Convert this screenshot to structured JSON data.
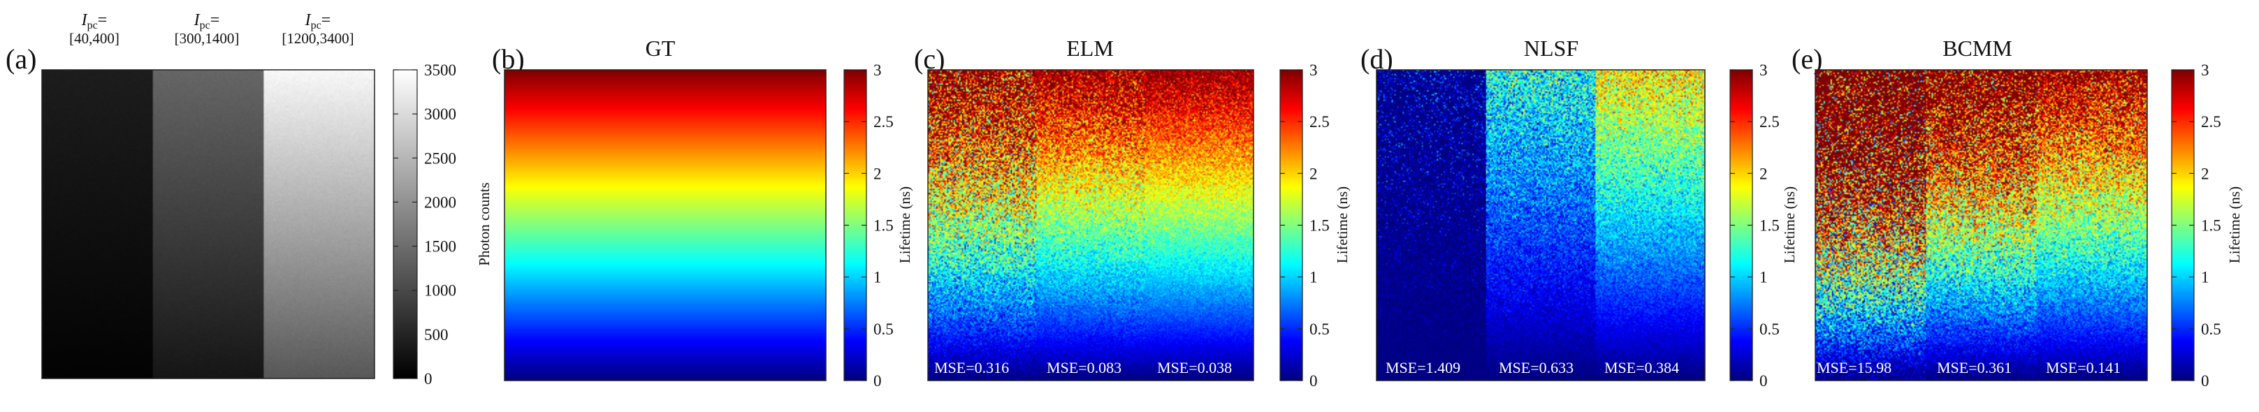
{
  "figure": {
    "panels": [
      {
        "id": "a",
        "letter": "(a)",
        "title": "",
        "type": "grayscale-image",
        "column_headers": [
          {
            "symbol": "I",
            "subscript": "pc",
            "suffix": "=",
            "range": "[40,400]"
          },
          {
            "symbol": "I",
            "subscript": "pc",
            "suffix": "=",
            "range": "[300,1400]"
          },
          {
            "symbol": "I",
            "subscript": "pc",
            "suffix": "=",
            "range": "[1200,3400]"
          }
        ],
        "colorbar": {
          "colormap": "gray",
          "label": "Photon counts",
          "ticks": [
            "0",
            "500",
            "1000",
            "1500",
            "2000",
            "2500",
            "3000",
            "3500"
          ],
          "range": [
            0,
            3500
          ]
        },
        "columns_count_range": [
          [
            40,
            400
          ],
          [
            300,
            1400
          ],
          [
            1200,
            3400
          ]
        ]
      },
      {
        "id": "b",
        "letter": "(b)",
        "title": "GT",
        "type": "lifetime-map",
        "colorbar": {
          "colormap": "jet",
          "label": "Lifetime (ns)",
          "ticks": [
            "0",
            "0.5",
            "1",
            "1.5",
            "2",
            "2.5",
            "3"
          ],
          "range": [
            0,
            3
          ]
        },
        "gt_range": [
          0,
          3
        ],
        "noise": [
          0,
          0,
          0
        ],
        "bias": [
          0,
          0,
          0
        ],
        "mse": []
      },
      {
        "id": "c",
        "letter": "(c)",
        "title": "ELM",
        "type": "lifetime-map",
        "colorbar": {
          "colormap": "jet",
          "label": "Lifetime (ns)",
          "ticks": [
            "0",
            "0.5",
            "1",
            "1.5",
            "2",
            "2.5",
            "3"
          ],
          "range": [
            0,
            3
          ]
        },
        "gt_range": [
          0,
          3
        ],
        "noise": [
          0.42,
          0.22,
          0.14
        ],
        "bias": [
          0.05,
          0,
          0
        ],
        "mse": [
          "MSE=0.316",
          "MSE=0.083",
          "MSE=0.038"
        ]
      },
      {
        "id": "d",
        "letter": "(d)",
        "title": "NLSF",
        "type": "lifetime-map",
        "colorbar": {
          "colormap": "jet",
          "label": "Lifetime (ns)",
          "ticks": [
            "0",
            "0.5",
            "1",
            "1.5",
            "2",
            "2.5",
            "3"
          ],
          "range": [
            0,
            3
          ]
        },
        "gt_range": [
          0,
          3
        ],
        "noise": [
          0.25,
          0.2,
          0.18
        ],
        "bias": [
          -1.05,
          -0.6,
          -0.35
        ],
        "mse": [
          "MSE=1.409",
          "MSE=0.633",
          "MSE=0.384"
        ]
      },
      {
        "id": "e",
        "letter": "(e)",
        "title": "BCMM",
        "type": "lifetime-map",
        "colorbar": {
          "colormap": "jet",
          "label": "Lifetime (ns)",
          "ticks": [
            "0",
            "0.5",
            "1",
            "1.5",
            "2",
            "2.5",
            "3"
          ],
          "range": [
            0,
            3
          ]
        },
        "gt_range": [
          0,
          3
        ],
        "noise": [
          0.9,
          0.45,
          0.3
        ],
        "bias": [
          0.5,
          0.15,
          0
        ],
        "mse": [
          "MSE=15.98",
          "MSE=0.361",
          "MSE=0.141"
        ]
      }
    ]
  }
}
